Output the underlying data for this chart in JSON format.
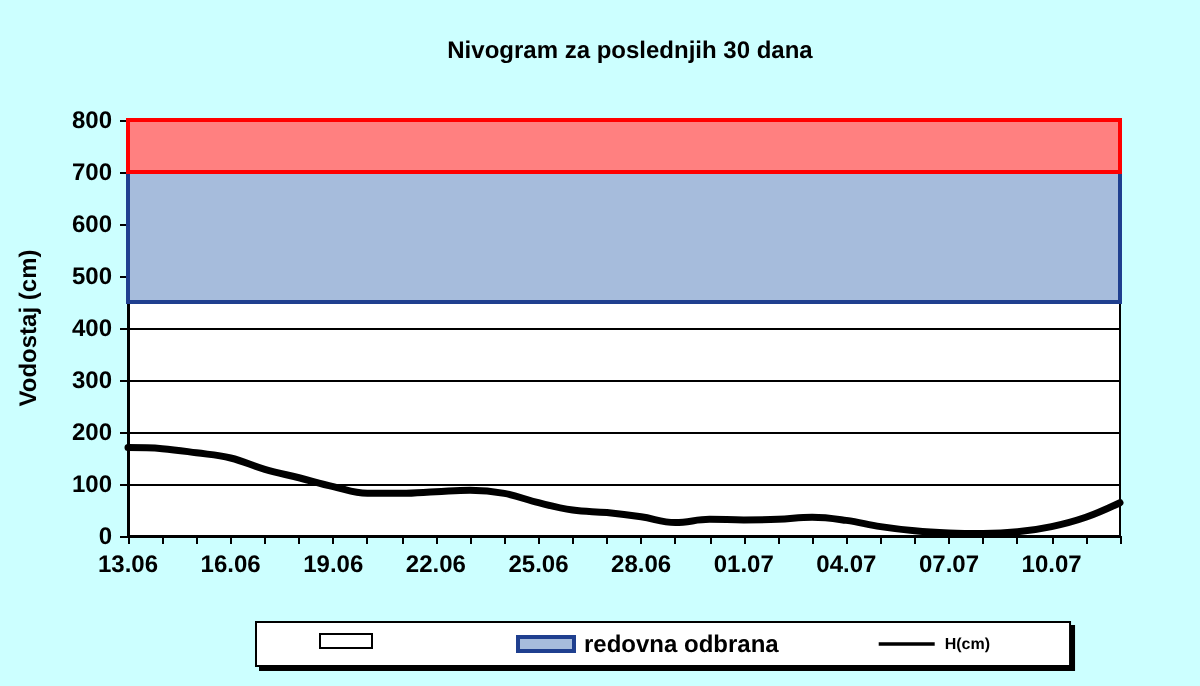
{
  "chart_data": {
    "type": "line",
    "title": "Nivogram za poslednjih 30 dana",
    "ylabel": "Vodostaj (cm)",
    "categories": [
      "13.06",
      null,
      null,
      "16.06",
      null,
      null,
      "19.06",
      null,
      null,
      "22.06",
      null,
      null,
      "25.06",
      null,
      null,
      "28.06",
      null,
      null,
      "01.07",
      null,
      null,
      "04.07",
      null,
      null,
      "07.07",
      null,
      null,
      "10.07",
      null,
      null
    ],
    "series": [
      {
        "name": "H(cm)",
        "color": "#000000",
        "values": [
          170,
          168,
          160,
          150,
          128,
          112,
          95,
          82,
          82,
          85,
          88,
          82,
          64,
          50,
          45,
          37,
          26,
          32,
          31,
          32,
          36,
          30,
          18,
          10,
          6,
          5,
          8,
          18,
          36,
          64
        ]
      }
    ],
    "ylim": [
      0,
      800
    ],
    "yticks": [
      0,
      100,
      200,
      300,
      400,
      500,
      600,
      700,
      800
    ],
    "grid": "y",
    "legend": "bottom",
    "marker": "none",
    "line_style": "solid",
    "bands": [
      {
        "axis": "y",
        "from": 450,
        "to": 700,
        "label": "redovna odbrana",
        "color": "#a6bcdc"
      },
      {
        "axis": "y",
        "from": 700,
        "to": 800,
        "label": null,
        "color": "#ff8080"
      }
    ]
  }
}
